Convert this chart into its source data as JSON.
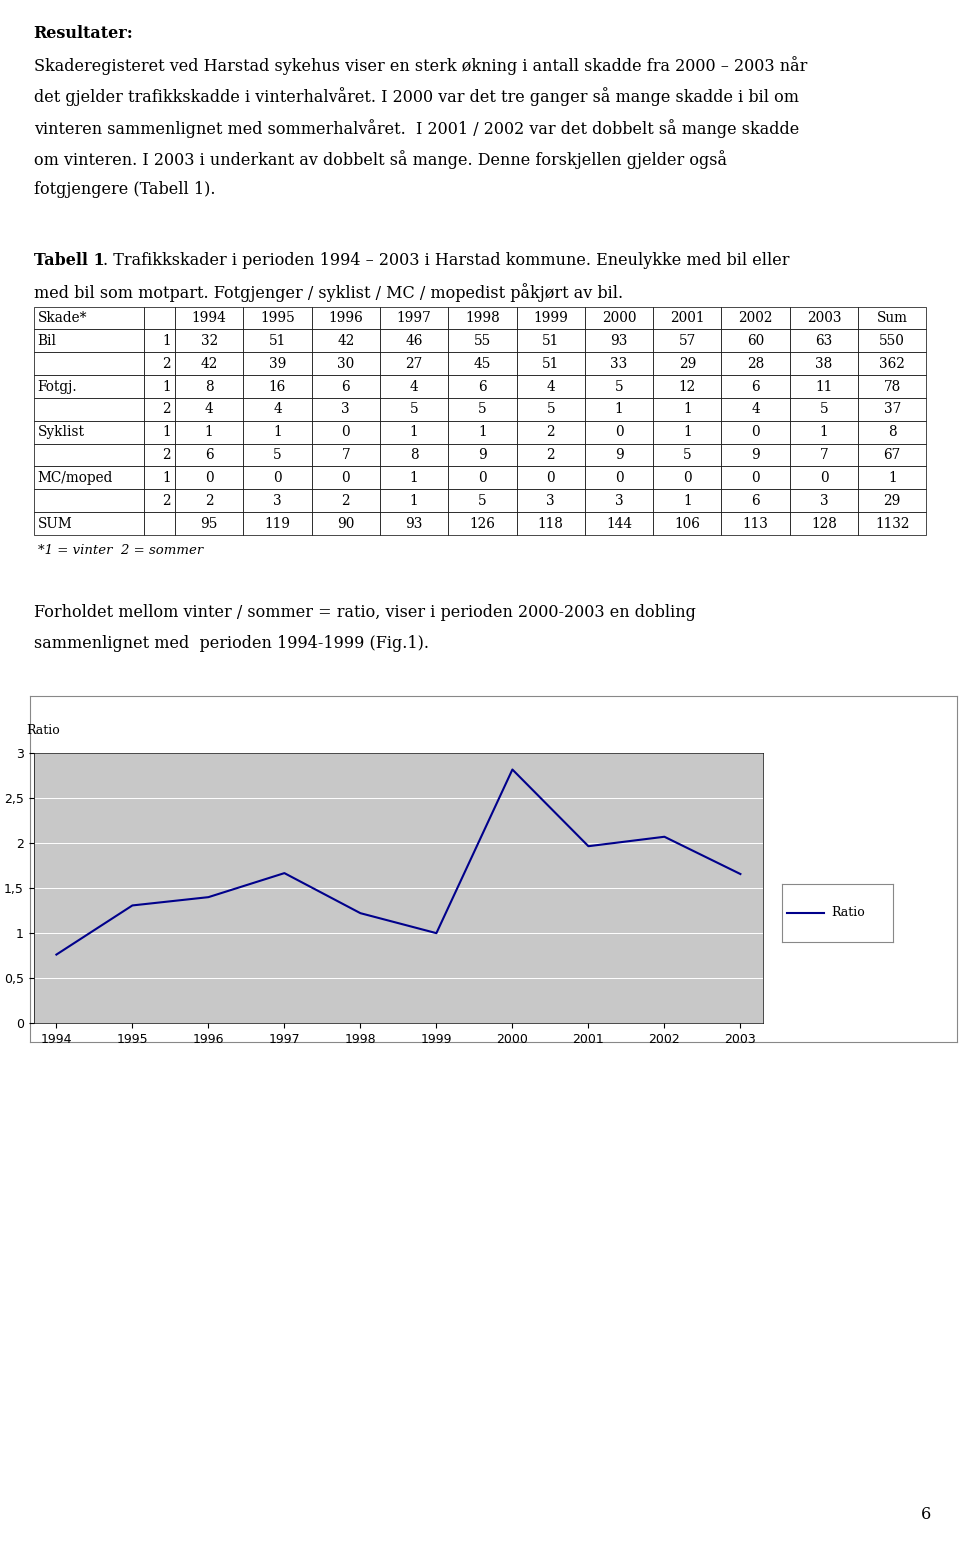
{
  "page_bg": "#ffffff",
  "text_color": "#000000",
  "tabell_caption_bold": "Tabell 1",
  "table_headers": [
    "Skade*",
    "",
    "1994",
    "1995",
    "1996",
    "1997",
    "1998",
    "1999",
    "2000",
    "2001",
    "2002",
    "2003",
    "Sum"
  ],
  "table_rows": [
    [
      "Bil",
      "1",
      "32",
      "51",
      "42",
      "46",
      "55",
      "51",
      "93",
      "57",
      "60",
      "63",
      "550"
    ],
    [
      "",
      "2",
      "42",
      "39",
      "30",
      "27",
      "45",
      "51",
      "33",
      "29",
      "28",
      "38",
      "362"
    ],
    [
      "Fotgj.",
      "1",
      "8",
      "16",
      "6",
      "4",
      "6",
      "4",
      "5",
      "12",
      "6",
      "11",
      "78"
    ],
    [
      "",
      "2",
      "4",
      "4",
      "3",
      "5",
      "5",
      "5",
      "1",
      "1",
      "4",
      "5",
      "37"
    ],
    [
      "Syklist",
      "1",
      "1",
      "1",
      "0",
      "1",
      "1",
      "2",
      "0",
      "1",
      "0",
      "1",
      "8"
    ],
    [
      "",
      "2",
      "6",
      "5",
      "7",
      "8",
      "9",
      "2",
      "9",
      "5",
      "9",
      "7",
      "67"
    ],
    [
      "MC/moped",
      "1",
      "0",
      "0",
      "0",
      "1",
      "0",
      "0",
      "0",
      "0",
      "0",
      "0",
      "1"
    ],
    [
      "",
      "2",
      "2",
      "3",
      "2",
      "1",
      "5",
      "3",
      "3",
      "1",
      "6",
      "3",
      "29"
    ],
    [
      "SUM",
      "",
      "95",
      "119",
      "90",
      "93",
      "126",
      "118",
      "144",
      "106",
      "113",
      "128",
      "1132"
    ]
  ],
  "table_footnote": "*1 = vinter  2 = sommer",
  "chart_years": [
    1994,
    1995,
    1996,
    1997,
    1998,
    1999,
    2000,
    2001,
    2002,
    2003
  ],
  "chart_ratio": [
    0.762,
    1.308,
    1.4,
    1.667,
    1.222,
    1.0,
    2.818,
    1.966,
    2.071,
    1.657
  ],
  "chart_ylabel": "Ratio",
  "chart_legend": "Ratio",
  "chart_line_color": "#00008B",
  "chart_plot_bg": "#C8C8C8",
  "ylim": [
    0,
    3
  ],
  "yticks": [
    0,
    0.5,
    1,
    1.5,
    2,
    2.5,
    3
  ],
  "page_number": "6"
}
